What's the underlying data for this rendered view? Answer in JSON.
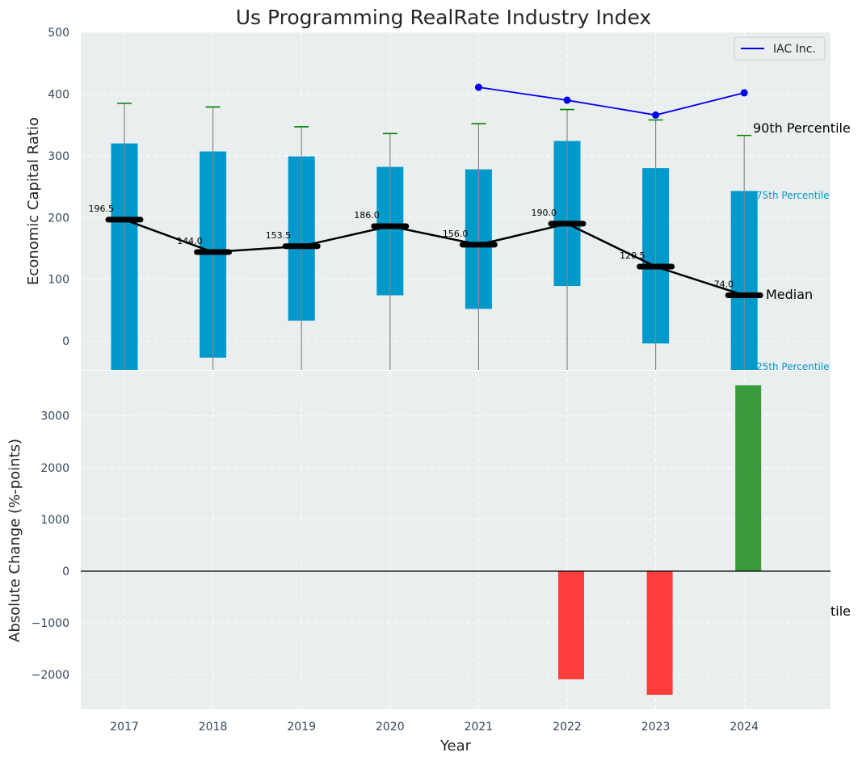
{
  "chart_data": [
    {
      "type": "bar",
      "title": "Us Programming RealRate Industry Index",
      "xlabel": "",
      "ylabel": "Economic Capital Ratio",
      "ylim": [
        -47,
        500
      ],
      "yticks": [
        "0",
        "100",
        "200",
        "300",
        "400",
        "500"
      ],
      "categories": [
        "2017",
        "2018",
        "2019",
        "2020",
        "2021",
        "2022",
        "2023",
        "2024"
      ],
      "grid": true,
      "legend_position": "top-right",
      "percentile_bars": {
        "p25": [
          -47,
          -27,
          33,
          74,
          52,
          89,
          -4,
          -47
        ],
        "p75": [
          320,
          307,
          299,
          282,
          278,
          324,
          280,
          243
        ],
        "p90": [
          385,
          379,
          347,
          336,
          352,
          375,
          358,
          333
        ],
        "median": [
          196.5,
          144.0,
          153.5,
          186.0,
          156.0,
          190.0,
          120.5,
          74.0
        ],
        "median_labels": [
          "196.5",
          "144.0",
          "153.5",
          "186.0",
          "156.0",
          "190.0",
          "120.5",
          "74.0"
        ]
      },
      "series": [
        {
          "name": "IAC Inc.",
          "x": [
            "2021",
            "2022",
            "2023",
            "2024"
          ],
          "values": [
            411,
            390,
            366,
            402
          ],
          "color": "#0000ee"
        }
      ],
      "annotations": {
        "p90": "90th Percentile",
        "p75": "75th Percentile",
        "median": "Median",
        "p25": "25th Percentile"
      },
      "colors": {
        "box": "#0099cc",
        "whisker_cap": "#008000",
        "median": "#000000",
        "plot_bg": "#eaeeee",
        "tick_text": "#33475b"
      }
    },
    {
      "type": "bar",
      "xlabel": "Year",
      "ylabel": "Absolute Change (%-points)",
      "ylim": [
        -2670,
        3870
      ],
      "yticks": [
        "−2000",
        "−1000",
        "0",
        "1000",
        "2000",
        "3000"
      ],
      "categories": [
        "2017",
        "2018",
        "2019",
        "2020",
        "2021",
        "2022",
        "2023",
        "2024"
      ],
      "values": [
        null,
        null,
        null,
        null,
        null,
        -2090,
        -2390,
        3590
      ],
      "clipped_label": "tile",
      "colors": {
        "positive": "#3a9a3e",
        "negative": "#ff3d3d"
      }
    }
  ]
}
